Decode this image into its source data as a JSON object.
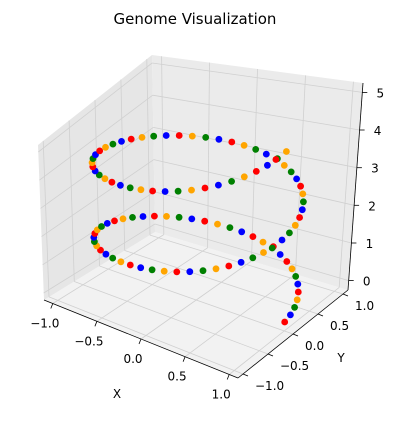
{
  "chart_data": {
    "type": "scatter",
    "projection": "3d",
    "title": "Genome Visualization",
    "xlabel": "X",
    "ylabel": "Y",
    "zlabel": "",
    "xlim": [
      -1.1,
      1.1
    ],
    "ylim": [
      -1.1,
      1.1
    ],
    "zlim": [
      -0.25,
      5.25
    ],
    "xticks": [
      -1.0,
      -0.5,
      0.0,
      0.5,
      1.0
    ],
    "xtick_labels": [
      "−1.0",
      "−0.5",
      "0.0",
      "0.5",
      "1.0"
    ],
    "yticks": [
      -1.0,
      -0.5,
      0.0,
      0.5,
      1.0
    ],
    "ytick_labels": [
      "−1.0",
      "−0.5",
      "0.0",
      "0.5",
      "1.0"
    ],
    "zticks": [
      0,
      1,
      2,
      3,
      4,
      5
    ],
    "ztick_labels": [
      "0",
      "1",
      "2",
      "3",
      "4",
      "5"
    ],
    "grid": true,
    "legend": "none",
    "point_colors": [
      "#ff0000",
      "#0000ff",
      "#008000",
      "#ffa500"
    ],
    "points": [
      {
        "x": 1.0,
        "y": 0.0,
        "z": 0.0,
        "c": 0
      },
      {
        "x": 0.992,
        "y": 0.127,
        "z": 0.05,
        "c": 1
      },
      {
        "x": 0.968,
        "y": 0.251,
        "z": 0.1,
        "c": 2
      },
      {
        "x": 0.929,
        "y": 0.369,
        "z": 0.15,
        "c": 3
      },
      {
        "x": 0.876,
        "y": 0.482,
        "z": 0.2,
        "c": 0
      },
      {
        "x": 0.809,
        "y": 0.588,
        "z": 0.25,
        "c": 1
      },
      {
        "x": 0.729,
        "y": 0.685,
        "z": 0.3,
        "c": 2
      },
      {
        "x": 0.637,
        "y": 0.771,
        "z": 0.35,
        "c": 3
      },
      {
        "x": 0.536,
        "y": 0.844,
        "z": 0.4,
        "c": 0
      },
      {
        "x": 0.426,
        "y": 0.905,
        "z": 0.45,
        "c": 1
      },
      {
        "x": 0.309,
        "y": 0.951,
        "z": 0.5,
        "c": 2
      },
      {
        "x": 0.187,
        "y": 0.982,
        "z": 0.55,
        "c": 3
      },
      {
        "x": 0.063,
        "y": 0.998,
        "z": 0.6,
        "c": 0
      },
      {
        "x": -0.063,
        "y": 0.998,
        "z": 0.65,
        "c": 1
      },
      {
        "x": -0.187,
        "y": 0.982,
        "z": 0.7,
        "c": 2
      },
      {
        "x": -0.309,
        "y": 0.951,
        "z": 0.75,
        "c": 3
      },
      {
        "x": -0.426,
        "y": 0.905,
        "z": 0.8,
        "c": 0
      },
      {
        "x": -0.536,
        "y": 0.844,
        "z": 0.85,
        "c": 1
      },
      {
        "x": -0.637,
        "y": 0.771,
        "z": 0.9,
        "c": 2
      },
      {
        "x": -0.729,
        "y": 0.685,
        "z": 0.95,
        "c": 3
      },
      {
        "x": -0.809,
        "y": 0.588,
        "z": 1.0,
        "c": 0
      },
      {
        "x": -0.876,
        "y": 0.482,
        "z": 1.05,
        "c": 1
      },
      {
        "x": -0.929,
        "y": 0.369,
        "z": 1.1,
        "c": 2
      },
      {
        "x": -0.968,
        "y": 0.251,
        "z": 1.15,
        "c": 3
      },
      {
        "x": -0.992,
        "y": 0.127,
        "z": 1.2,
        "c": 0
      },
      {
        "x": -1.0,
        "y": 0.0,
        "z": 1.25,
        "c": 1
      },
      {
        "x": -0.992,
        "y": -0.127,
        "z": 1.3,
        "c": 2
      },
      {
        "x": -0.968,
        "y": -0.251,
        "z": 1.35,
        "c": 3
      },
      {
        "x": -0.929,
        "y": -0.369,
        "z": 1.4,
        "c": 0
      },
      {
        "x": -0.876,
        "y": -0.482,
        "z": 1.45,
        "c": 1
      },
      {
        "x": -0.809,
        "y": -0.588,
        "z": 1.5,
        "c": 2
      },
      {
        "x": -0.729,
        "y": -0.685,
        "z": 1.55,
        "c": 3
      },
      {
        "x": -0.637,
        "y": -0.771,
        "z": 1.6,
        "c": 0
      },
      {
        "x": -0.536,
        "y": -0.844,
        "z": 1.65,
        "c": 1
      },
      {
        "x": -0.426,
        "y": -0.905,
        "z": 1.7,
        "c": 2
      },
      {
        "x": -0.309,
        "y": -0.951,
        "z": 1.75,
        "c": 3
      },
      {
        "x": -0.187,
        "y": -0.982,
        "z": 1.8,
        "c": 0
      },
      {
        "x": -0.063,
        "y": -0.998,
        "z": 1.85,
        "c": 1
      },
      {
        "x": 0.063,
        "y": -0.998,
        "z": 1.9,
        "c": 2
      },
      {
        "x": 0.187,
        "y": -0.982,
        "z": 1.95,
        "c": 3
      },
      {
        "x": 0.309,
        "y": -0.951,
        "z": 2.0,
        "c": 0
      },
      {
        "x": 0.426,
        "y": -0.905,
        "z": 2.05,
        "c": 1
      },
      {
        "x": 0.536,
        "y": -0.844,
        "z": 2.1,
        "c": 2
      },
      {
        "x": 0.637,
        "y": -0.771,
        "z": 2.15,
        "c": 3
      },
      {
        "x": 0.729,
        "y": -0.685,
        "z": 2.2,
        "c": 0
      },
      {
        "x": 0.809,
        "y": -0.588,
        "z": 2.25,
        "c": 1
      },
      {
        "x": 0.876,
        "y": -0.482,
        "z": 2.3,
        "c": 2
      },
      {
        "x": 0.929,
        "y": -0.369,
        "z": 2.35,
        "c": 3
      },
      {
        "x": 0.968,
        "y": -0.251,
        "z": 2.4,
        "c": 0
      },
      {
        "x": 0.992,
        "y": -0.127,
        "z": 2.45,
        "c": 1
      },
      {
        "x": 1.0,
        "y": 0.0,
        "z": 2.5,
        "c": 2
      },
      {
        "x": 0.992,
        "y": 0.127,
        "z": 2.55,
        "c": 3
      },
      {
        "x": 0.968,
        "y": 0.251,
        "z": 2.6,
        "c": 0
      },
      {
        "x": 0.929,
        "y": 0.369,
        "z": 2.65,
        "c": 1
      },
      {
        "x": 0.876,
        "y": 0.482,
        "z": 2.7,
        "c": 2
      },
      {
        "x": 0.809,
        "y": 0.588,
        "z": 2.75,
        "c": 3
      },
      {
        "x": 0.729,
        "y": 0.685,
        "z": 2.8,
        "c": 0
      },
      {
        "x": 0.637,
        "y": 0.771,
        "z": 2.85,
        "c": 1
      },
      {
        "x": 0.536,
        "y": 0.844,
        "z": 2.9,
        "c": 2
      },
      {
        "x": 0.426,
        "y": 0.905,
        "z": 2.95,
        "c": 3
      },
      {
        "x": 0.309,
        "y": 0.951,
        "z": 3.0,
        "c": 0
      },
      {
        "x": 0.187,
        "y": 0.982,
        "z": 3.05,
        "c": 1
      },
      {
        "x": 0.063,
        "y": 0.998,
        "z": 3.1,
        "c": 2
      },
      {
        "x": -0.063,
        "y": 0.998,
        "z": 3.15,
        "c": 3
      },
      {
        "x": -0.187,
        "y": 0.982,
        "z": 3.2,
        "c": 0
      },
      {
        "x": -0.309,
        "y": 0.951,
        "z": 3.25,
        "c": 1
      },
      {
        "x": -0.426,
        "y": 0.905,
        "z": 3.3,
        "c": 2
      },
      {
        "x": -0.536,
        "y": 0.844,
        "z": 3.35,
        "c": 3
      },
      {
        "x": -0.637,
        "y": 0.771,
        "z": 3.4,
        "c": 0
      },
      {
        "x": -0.729,
        "y": 0.685,
        "z": 3.45,
        "c": 1
      },
      {
        "x": -0.809,
        "y": 0.588,
        "z": 3.5,
        "c": 2
      },
      {
        "x": -0.876,
        "y": 0.482,
        "z": 3.55,
        "c": 3
      },
      {
        "x": -0.929,
        "y": 0.369,
        "z": 3.6,
        "c": 0
      },
      {
        "x": -0.968,
        "y": 0.251,
        "z": 3.65,
        "c": 1
      },
      {
        "x": -0.992,
        "y": 0.127,
        "z": 3.7,
        "c": 2
      },
      {
        "x": -1.0,
        "y": 0.0,
        "z": 3.75,
        "c": 3
      },
      {
        "x": -0.992,
        "y": -0.127,
        "z": 3.8,
        "c": 0
      },
      {
        "x": -0.968,
        "y": -0.251,
        "z": 3.85,
        "c": 1
      },
      {
        "x": -0.929,
        "y": -0.369,
        "z": 3.9,
        "c": 2
      },
      {
        "x": -0.876,
        "y": -0.482,
        "z": 3.95,
        "c": 3
      },
      {
        "x": -0.809,
        "y": -0.588,
        "z": 4.0,
        "c": 0
      },
      {
        "x": -0.729,
        "y": -0.685,
        "z": 4.05,
        "c": 1
      },
      {
        "x": -0.637,
        "y": -0.771,
        "z": 4.1,
        "c": 2
      },
      {
        "x": -0.536,
        "y": -0.844,
        "z": 4.15,
        "c": 3
      },
      {
        "x": -0.426,
        "y": -0.905,
        "z": 4.2,
        "c": 0
      },
      {
        "x": -0.309,
        "y": -0.951,
        "z": 4.25,
        "c": 1
      },
      {
        "x": -0.187,
        "y": -0.982,
        "z": 4.3,
        "c": 2
      },
      {
        "x": -0.063,
        "y": -0.998,
        "z": 4.35,
        "c": 3
      },
      {
        "x": 0.063,
        "y": -0.998,
        "z": 4.4,
        "c": 0
      },
      {
        "x": 0.187,
        "y": -0.982,
        "z": 4.45,
        "c": 1
      },
      {
        "x": 0.309,
        "y": -0.951,
        "z": 4.5,
        "c": 2
      },
      {
        "x": 0.426,
        "y": -0.905,
        "z": 4.55,
        "c": 3
      },
      {
        "x": 0.536,
        "y": -0.844,
        "z": 4.6,
        "c": 0
      },
      {
        "x": 0.637,
        "y": -0.771,
        "z": 4.65,
        "c": 1
      },
      {
        "x": 0.729,
        "y": -0.685,
        "z": 4.7,
        "c": 2
      },
      {
        "x": 0.809,
        "y": -0.588,
        "z": 4.75,
        "c": 3
      },
      {
        "x": 0.876,
        "y": -0.482,
        "z": 4.8,
        "c": 0
      },
      {
        "x": 0.929,
        "y": -0.369,
        "z": 4.85,
        "c": 1
      },
      {
        "x": 0.968,
        "y": -0.251,
        "z": 4.9,
        "c": 2
      },
      {
        "x": 0.992,
        "y": -0.127,
        "z": 4.95,
        "c": 3
      }
    ]
  }
}
